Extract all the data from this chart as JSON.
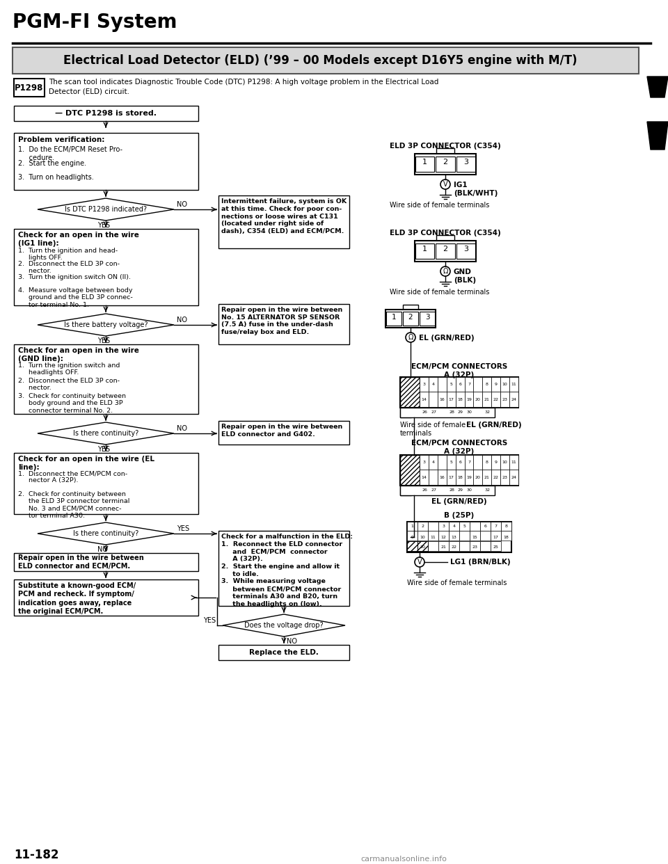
{
  "title": "PGM-FI System",
  "subtitle": "Electrical Load Detector (ELD) (’99 – 00 Models except D16Y5 engine with M/T)",
  "dtc_code": "P1298",
  "dtc_description": "The scan tool indicates Diagnostic Trouble Code (DTC) P1298: A high voltage problem in the Electrical Load\nDetector (ELD) circuit.",
  "page_number": "11-182",
  "bg_color": "#ffffff",
  "flowchart": {
    "box1": "— DTC P1298 is stored.",
    "box2_title": "Problem verification:",
    "box2_items": [
      "1.  Do the ECM/PCM Reset Pro-\n     cedure.",
      "2.  Start the engine.",
      "3.  Turn on headlights."
    ],
    "diamond1": "Is DTC P1298 indicated?",
    "no1_text": "Intermittent failure, system is OK\nat this time. Check for poor con-\nnections or loose wires at C131\n(located under right side of\ndash), C354 (ELD) and ECM/PCM.",
    "box3_title": "Check for an open in the wire\n(IG1 line):",
    "box3_items": [
      "1.  Turn the ignition and head-\n     lights OFF.",
      "2.  Disconnect the ELD 3P con-\n     nector.",
      "3.  Turn the ignition switch ON (II).",
      "4.  Measure voltage between body\n     ground and the ELD 3P connec-\n     tor terminal No. 1."
    ],
    "diamond2": "Is there battery voltage?",
    "no2_text": "Repair open in the wire between\nNo. 15 ALTERNATOR SP SENSOR\n(7.5 A) fuse in the under-dash\nfuse/relay box and ELD.",
    "box4_title": "Check for an open in the wire\n(GND line):",
    "box4_items": [
      "1.  Turn the ignition switch and\n     headlights OFF.",
      "2.  Disconnect the ELD 3P con-\n     nector.",
      "3.  Check for continuity between\n     body ground and the ELD 3P\n     connector terminal No. 2."
    ],
    "diamond3": "Is there continuity?",
    "no3_text": "Repair open in the wire between\nELD connector and G402.",
    "box5_title": "Check for an open in the wire (EL\nline):",
    "box5_items": [
      "1.  Disconnect the ECM/PCM con-\n     nector A (32P).",
      "2.  Check for continuity between\n     the ELD 3P connector terminal\n     No. 3 and ECM/PCM connec-\n     tor terminal A30."
    ],
    "diamond4": "Is there continuity?",
    "no4_text": "Repair open in the wire between\nELD connector and ECM/PCM.",
    "box6": "Substitute a known-good ECM/\nPCM and recheck. If symptom/\nindication goes away, replace\nthe original ECM/PCM.",
    "yes_check_text": "Check for a malfunction in the ELD:\n1.  Reconnect the ELD connector\n     and  ECM/PCM  connector\n     A (32P).\n2.  Start the engine and allow it\n     to idle.\n3.  While measuring voltage\n     between ECM/PCM connector\n     terminals A30 and B20, turn\n     the headlights on (low).",
    "diamond5": "Does the voltage drop?",
    "no5_text": "Replace the ELD.",
    "eld_connector1_title": "ELD 3P CONNECTOR (C354)",
    "eld_connector1_label": "IG1\n(BLK/WHT)",
    "eld_connector1_footer": "Wire side of female terminals",
    "eld_connector2_title": "ELD 3P CONNECTOR (C354)",
    "eld_connector2_label": "GND\n(BLK)",
    "eld_connector2_footer": "Wire side of female terminals",
    "el_label": "EL (GRN/RED)",
    "ecm_title1": "ECM/PCM CONNECTORS\nA (32P)",
    "ecm_footer1_left": "Wire side of female\nterminals",
    "ecm_footer1_right": "EL (GRN/RED)",
    "ecm_title2": "ECM/PCM CONNECTORS\nA (32P)",
    "ecm_footer2": "EL (GRN/RED)",
    "b25p_title": "B (25P)",
    "b25p_footer": "LG1 (BRN/BLK)",
    "wire_footer": "Wire side of female terminals"
  }
}
